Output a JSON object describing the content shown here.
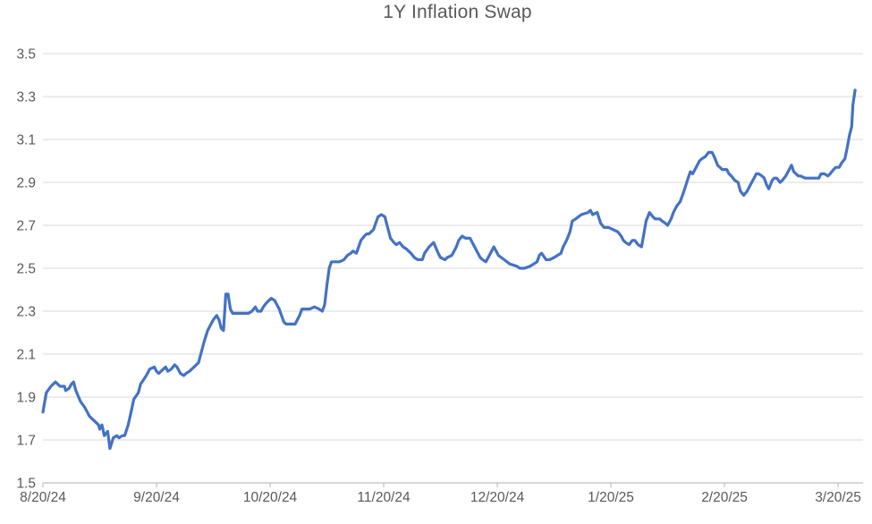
{
  "page": {
    "background": "#FFFFFF"
  },
  "chart_data": {
    "type": "line",
    "title": "1Y Inflation Swap",
    "title_color": "#595959",
    "grid": "horizontal",
    "legend": null,
    "x_axis": {
      "label": "",
      "tick_labels": [
        "8/20/24",
        "9/20/24",
        "10/20/24",
        "11/20/24",
        "12/20/24",
        "1/20/25",
        "2/20/25",
        "3/20/25"
      ],
      "tick_positions_months": [
        0,
        1,
        2,
        3,
        4,
        5,
        6,
        7
      ],
      "range_months": [
        0,
        7.22
      ],
      "axis_color": "#BFBFBF",
      "label_color": "#595959"
    },
    "y_axis": {
      "label": "",
      "ticks": [
        1.5,
        1.7,
        1.9,
        2.1,
        2.3,
        2.5,
        2.7,
        2.9,
        3.1,
        3.3,
        3.5
      ],
      "range": [
        1.5,
        3.5
      ],
      "tick_step": 0.2,
      "gridline_color": "#D9D9D9",
      "label_color": "#595959"
    },
    "series": [
      {
        "name": "1Y Inflation Swap",
        "color": "#4472C4",
        "stroke_width": 3.2,
        "x_unit": "months since 8/20/24",
        "points": [
          [
            0,
            1.83
          ],
          [
            0.03,
            1.92
          ],
          [
            0.07,
            1.95
          ],
          [
            0.11,
            1.97
          ],
          [
            0.15,
            1.95
          ],
          [
            0.19,
            1.95
          ],
          [
            0.2,
            1.93
          ],
          [
            0.23,
            1.94
          ],
          [
            0.25,
            1.96
          ],
          [
            0.27,
            1.97
          ],
          [
            0.29,
            1.93
          ],
          [
            0.33,
            1.88
          ],
          [
            0.37,
            1.85
          ],
          [
            0.41,
            1.81
          ],
          [
            0.45,
            1.79
          ],
          [
            0.49,
            1.77
          ],
          [
            0.5,
            1.75
          ],
          [
            0.52,
            1.77
          ],
          [
            0.54,
            1.72
          ],
          [
            0.57,
            1.74
          ],
          [
            0.59,
            1.66
          ],
          [
            0.62,
            1.71
          ],
          [
            0.65,
            1.72
          ],
          [
            0.67,
            1.71
          ],
          [
            0.7,
            1.72
          ],
          [
            0.72,
            1.72
          ],
          [
            0.75,
            1.77
          ],
          [
            0.78,
            1.84
          ],
          [
            0.8,
            1.89
          ],
          [
            0.84,
            1.92
          ],
          [
            0.86,
            1.96
          ],
          [
            0.91,
            2.0
          ],
          [
            0.94,
            2.03
          ],
          [
            0.98,
            2.04
          ],
          [
            1.0,
            2.02
          ],
          [
            1.02,
            2.01
          ],
          [
            1.06,
            2.03
          ],
          [
            1.08,
            2.04
          ],
          [
            1.1,
            2.02
          ],
          [
            1.13,
            2.03
          ],
          [
            1.16,
            2.05
          ],
          [
            1.18,
            2.04
          ],
          [
            1.21,
            2.01
          ],
          [
            1.24,
            2.0
          ],
          [
            1.26,
            2.01
          ],
          [
            1.29,
            2.02
          ],
          [
            1.33,
            2.04
          ],
          [
            1.37,
            2.06
          ],
          [
            1.39,
            2.1
          ],
          [
            1.42,
            2.16
          ],
          [
            1.45,
            2.21
          ],
          [
            1.47,
            2.23
          ],
          [
            1.5,
            2.26
          ],
          [
            1.53,
            2.28
          ],
          [
            1.55,
            2.26
          ],
          [
            1.57,
            2.22
          ],
          [
            1.59,
            2.21
          ],
          [
            1.61,
            2.38
          ],
          [
            1.63,
            2.38
          ],
          [
            1.65,
            2.31
          ],
          [
            1.67,
            2.29
          ],
          [
            1.71,
            2.29
          ],
          [
            1.75,
            2.29
          ],
          [
            1.79,
            2.29
          ],
          [
            1.81,
            2.29
          ],
          [
            1.84,
            2.3
          ],
          [
            1.87,
            2.32
          ],
          [
            1.89,
            2.3
          ],
          [
            1.92,
            2.3
          ],
          [
            1.94,
            2.32
          ],
          [
            1.97,
            2.34
          ],
          [
            2.01,
            2.36
          ],
          [
            2.04,
            2.35
          ],
          [
            2.08,
            2.31
          ],
          [
            2.12,
            2.25
          ],
          [
            2.14,
            2.24
          ],
          [
            2.18,
            2.24
          ],
          [
            2.22,
            2.24
          ],
          [
            2.26,
            2.28
          ],
          [
            2.28,
            2.31
          ],
          [
            2.31,
            2.31
          ],
          [
            2.35,
            2.31
          ],
          [
            2.39,
            2.32
          ],
          [
            2.43,
            2.31
          ],
          [
            2.46,
            2.3
          ],
          [
            2.48,
            2.33
          ],
          [
            2.5,
            2.42
          ],
          [
            2.52,
            2.5
          ],
          [
            2.54,
            2.53
          ],
          [
            2.57,
            2.53
          ],
          [
            2.61,
            2.53
          ],
          [
            2.65,
            2.54
          ],
          [
            2.68,
            2.56
          ],
          [
            2.71,
            2.57
          ],
          [
            2.73,
            2.58
          ],
          [
            2.76,
            2.57
          ],
          [
            2.8,
            2.63
          ],
          [
            2.83,
            2.65
          ],
          [
            2.85,
            2.66
          ],
          [
            2.87,
            2.66
          ],
          [
            2.91,
            2.68
          ],
          [
            2.93,
            2.71
          ],
          [
            2.95,
            2.74
          ],
          [
            2.98,
            2.75
          ],
          [
            3.01,
            2.74
          ],
          [
            3.03,
            2.7
          ],
          [
            3.06,
            2.64
          ],
          [
            3.09,
            2.62
          ],
          [
            3.11,
            2.61
          ],
          [
            3.14,
            2.62
          ],
          [
            3.17,
            2.6
          ],
          [
            3.2,
            2.59
          ],
          [
            3.24,
            2.57
          ],
          [
            3.27,
            2.55
          ],
          [
            3.3,
            2.54
          ],
          [
            3.34,
            2.54
          ],
          [
            3.36,
            2.57
          ],
          [
            3.4,
            2.6
          ],
          [
            3.44,
            2.62
          ],
          [
            3.48,
            2.57
          ],
          [
            3.5,
            2.55
          ],
          [
            3.54,
            2.54
          ],
          [
            3.56,
            2.55
          ],
          [
            3.6,
            2.56
          ],
          [
            3.64,
            2.6
          ],
          [
            3.66,
            2.63
          ],
          [
            3.69,
            2.65
          ],
          [
            3.72,
            2.64
          ],
          [
            3.76,
            2.64
          ],
          [
            3.78,
            2.62
          ],
          [
            3.8,
            2.6
          ],
          [
            3.83,
            2.57
          ],
          [
            3.85,
            2.55
          ],
          [
            3.87,
            2.54
          ],
          [
            3.9,
            2.53
          ],
          [
            3.94,
            2.57
          ],
          [
            3.97,
            2.6
          ],
          [
            4.01,
            2.56
          ],
          [
            4.06,
            2.54
          ],
          [
            4.11,
            2.52
          ],
          [
            4.17,
            2.51
          ],
          [
            4.2,
            2.5
          ],
          [
            4.24,
            2.5
          ],
          [
            4.29,
            2.51
          ],
          [
            4.35,
            2.53
          ],
          [
            4.37,
            2.56
          ],
          [
            4.39,
            2.57
          ],
          [
            4.43,
            2.54
          ],
          [
            4.46,
            2.54
          ],
          [
            4.5,
            2.55
          ],
          [
            4.53,
            2.56
          ],
          [
            4.56,
            2.57
          ],
          [
            4.58,
            2.6
          ],
          [
            4.61,
            2.63
          ],
          [
            4.64,
            2.67
          ],
          [
            4.66,
            2.72
          ],
          [
            4.69,
            2.73
          ],
          [
            4.74,
            2.75
          ],
          [
            4.8,
            2.76
          ],
          [
            4.82,
            2.77
          ],
          [
            4.84,
            2.75
          ],
          [
            4.88,
            2.76
          ],
          [
            4.91,
            2.71
          ],
          [
            4.94,
            2.69
          ],
          [
            4.98,
            2.69
          ],
          [
            5.02,
            2.68
          ],
          [
            5.06,
            2.67
          ],
          [
            5.09,
            2.65
          ],
          [
            5.11,
            2.63
          ],
          [
            5.13,
            2.62
          ],
          [
            5.16,
            2.61
          ],
          [
            5.19,
            2.63
          ],
          [
            5.21,
            2.63
          ],
          [
            5.24,
            2.61
          ],
          [
            5.27,
            2.6
          ],
          [
            5.29,
            2.66
          ],
          [
            5.31,
            2.72
          ],
          [
            5.34,
            2.76
          ],
          [
            5.37,
            2.74
          ],
          [
            5.39,
            2.73
          ],
          [
            5.43,
            2.73
          ],
          [
            5.45,
            2.72
          ],
          [
            5.48,
            2.71
          ],
          [
            5.5,
            2.7
          ],
          [
            5.53,
            2.73
          ],
          [
            5.55,
            2.76
          ],
          [
            5.58,
            2.79
          ],
          [
            5.61,
            2.81
          ],
          [
            5.63,
            2.84
          ],
          [
            5.65,
            2.87
          ],
          [
            5.68,
            2.92
          ],
          [
            5.7,
            2.95
          ],
          [
            5.72,
            2.94
          ],
          [
            5.75,
            2.97
          ],
          [
            5.78,
            3.0
          ],
          [
            5.8,
            3.01
          ],
          [
            5.83,
            3.02
          ],
          [
            5.86,
            3.04
          ],
          [
            5.89,
            3.04
          ],
          [
            5.91,
            3.02
          ],
          [
            5.94,
            2.98
          ],
          [
            5.96,
            2.97
          ],
          [
            5.98,
            2.96
          ],
          [
            6.02,
            2.96
          ],
          [
            6.04,
            2.94
          ],
          [
            6.06,
            2.93
          ],
          [
            6.09,
            2.91
          ],
          [
            6.12,
            2.9
          ],
          [
            6.14,
            2.86
          ],
          [
            6.17,
            2.84
          ],
          [
            6.2,
            2.86
          ],
          [
            6.22,
            2.88
          ],
          [
            6.24,
            2.9
          ],
          [
            6.26,
            2.92
          ],
          [
            6.28,
            2.94
          ],
          [
            6.3,
            2.94
          ],
          [
            6.33,
            2.93
          ],
          [
            6.35,
            2.92
          ],
          [
            6.37,
            2.89
          ],
          [
            6.39,
            2.87
          ],
          [
            6.42,
            2.91
          ],
          [
            6.44,
            2.92
          ],
          [
            6.46,
            2.92
          ],
          [
            6.49,
            2.9
          ],
          [
            6.51,
            2.91
          ],
          [
            6.54,
            2.93
          ],
          [
            6.57,
            2.96
          ],
          [
            6.59,
            2.98
          ],
          [
            6.61,
            2.95
          ],
          [
            6.65,
            2.93
          ],
          [
            6.67,
            2.93
          ],
          [
            6.71,
            2.92
          ],
          [
            6.75,
            2.92
          ],
          [
            6.79,
            2.92
          ],
          [
            6.83,
            2.92
          ],
          [
            6.85,
            2.94
          ],
          [
            6.88,
            2.94
          ],
          [
            6.91,
            2.93
          ],
          [
            6.93,
            2.94
          ],
          [
            6.96,
            2.96
          ],
          [
            6.98,
            2.97
          ],
          [
            7.01,
            2.97
          ],
          [
            7.03,
            2.99
          ],
          [
            7.06,
            3.01
          ],
          [
            7.08,
            3.06
          ],
          [
            7.1,
            3.12
          ],
          [
            7.12,
            3.16
          ],
          [
            7.13,
            3.26
          ],
          [
            7.15,
            3.33
          ]
        ]
      }
    ]
  }
}
